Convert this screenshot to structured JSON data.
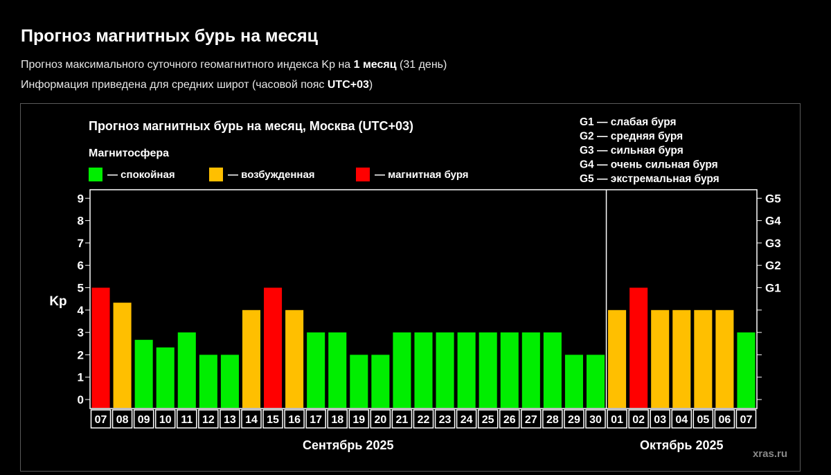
{
  "header": {
    "title": "Прогноз магнитных бурь на месяц",
    "line1_a": "Прогноз максимального суточного геомагнитного индекса Kp на ",
    "line1_b": "1 месяц",
    "line1_c": " (31 день)",
    "line2_a": "Информация приведена для средних широт (часовой пояс ",
    "line2_b": "UTC+03",
    "line2_c": ")"
  },
  "chart_data": {
    "type": "bar",
    "title": "Прогноз магнитных бурь на месяц, Москва (UTC+03)",
    "legend_title": "Магнитосфера",
    "legend": [
      {
        "label": "— спокойная",
        "color": "#00ee00"
      },
      {
        "label": "— возбужденная",
        "color": "#ffbf00"
      },
      {
        "label": "— магнитная буря",
        "color": "#ff0000"
      }
    ],
    "storm_scale": [
      "G1 — слабая буря",
      "G2 — средняя буря",
      "G3 — сильная буря",
      "G4 — очень сильная буря",
      "G5 — экстремальная буря"
    ],
    "ylabel": "Kp",
    "ylim": [
      0,
      9
    ],
    "y_ticks": [
      "0",
      "1",
      "2",
      "3",
      "4",
      "5",
      "6",
      "7",
      "8",
      "9"
    ],
    "right_ticks": [
      {
        "value": 5,
        "label": "G1"
      },
      {
        "value": 6,
        "label": "G2"
      },
      {
        "value": 7,
        "label": "G3"
      },
      {
        "value": 8,
        "label": "G4"
      },
      {
        "value": 9,
        "label": "G5"
      }
    ],
    "categories": [
      "07",
      "08",
      "09",
      "10",
      "11",
      "12",
      "13",
      "14",
      "15",
      "16",
      "17",
      "18",
      "19",
      "20",
      "21",
      "22",
      "23",
      "24",
      "25",
      "26",
      "27",
      "28",
      "29",
      "30",
      "01",
      "02",
      "03",
      "04",
      "05",
      "06",
      "07"
    ],
    "values": [
      5,
      4.33,
      2.67,
      2.33,
      3,
      2,
      2,
      4,
      5,
      4,
      3,
      3,
      2,
      2,
      3,
      3,
      3,
      3,
      3,
      3,
      3,
      3,
      2,
      2,
      4,
      5,
      4,
      4,
      4,
      4,
      3
    ],
    "levels": [
      "storm",
      "active",
      "quiet",
      "quiet",
      "quiet",
      "quiet",
      "quiet",
      "active",
      "storm",
      "active",
      "quiet",
      "quiet",
      "quiet",
      "quiet",
      "quiet",
      "quiet",
      "quiet",
      "quiet",
      "quiet",
      "quiet",
      "quiet",
      "quiet",
      "quiet",
      "quiet",
      "active",
      "storm",
      "active",
      "active",
      "active",
      "active",
      "quiet"
    ],
    "colors": {
      "quiet": "#00ee00",
      "active": "#ffbf00",
      "storm": "#ff0000"
    },
    "months": [
      {
        "label": "Сентябрь 2025",
        "first_index": 0,
        "last_index": 23
      },
      {
        "label": "Октябрь 2025",
        "first_index": 24,
        "last_index": 30
      }
    ],
    "grid": false,
    "watermark": "xras.ru"
  }
}
